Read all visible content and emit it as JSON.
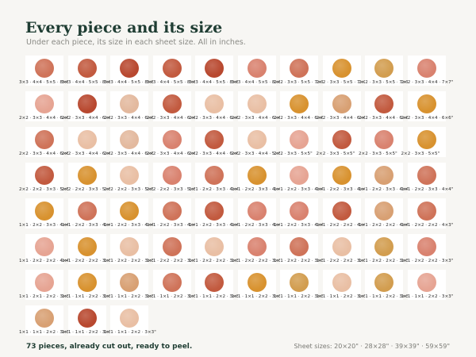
{
  "header": {
    "title": "Every piece and its size",
    "subtitle": "Under each piece, its size in each sheet size. All in inches."
  },
  "colors": {
    "rose": "#d9826f",
    "coral": "#cf7359",
    "rust": "#c25a3f",
    "terracotta": "#b8482f",
    "blush": "#e6a493",
    "peach": "#e9bfa4",
    "sand": "#e3b99e",
    "mustard": "#d8922f",
    "ochre": "#d29d4f",
    "tan": "#d8a073"
  },
  "pieces": [
    {
      "caption": "3×3 · 4×4 · 5×5 · 8×8\"",
      "color": "coral"
    },
    {
      "caption": "3×3 · 4×4 · 5×5 · 8×8\"",
      "color": "rust"
    },
    {
      "caption": "3×3 · 4×4 · 5×5 · 8×8\"",
      "color": "terracotta"
    },
    {
      "caption": "3×3 · 4×4 · 5×5 · 8×8\"",
      "color": "rust"
    },
    {
      "caption": "3×3 · 4×4 · 5×5 · 8×8\"",
      "color": "terracotta"
    },
    {
      "caption": "3×3 · 4×4 · 5×5 · 8×8\"",
      "color": "rose"
    },
    {
      "caption": "2×2 · 3×3 · 5×5 · 7×7\"",
      "color": "coral"
    },
    {
      "caption": "2×2 · 3×3 · 5×5 · 7×7\"",
      "color": "mustard"
    },
    {
      "caption": "2×2 · 3×3 · 5×5 · 7×7\"",
      "color": "ochre"
    },
    {
      "caption": "2×2 · 3×3 · 4×4 · 7×7\"",
      "color": "rose"
    },
    {
      "caption": "2×2 · 3×3 · 4×4 · 6×6\"",
      "color": "blush"
    },
    {
      "caption": "2×2 · 3×3 · 4×4 · 6×6\"",
      "color": "terracotta"
    },
    {
      "caption": "2×2 · 3×3 · 4×4 · 6×6\"",
      "color": "sand"
    },
    {
      "caption": "2×2 · 3×3 · 4×4 · 6×6\"",
      "color": "rust"
    },
    {
      "caption": "2×2 · 3×3 · 4×4 · 6×6\"",
      "color": "peach"
    },
    {
      "caption": "2×2 · 3×3 · 4×4 · 6×6\"",
      "color": "peach"
    },
    {
      "caption": "2×2 · 3×3 · 4×4 · 6×6\"",
      "color": "mustard"
    },
    {
      "caption": "2×2 · 3×3 · 4×4 · 6×6\"",
      "color": "tan"
    },
    {
      "caption": "2×2 · 3×3 · 4×4 · 6×6\"",
      "color": "rust"
    },
    {
      "caption": "2×2 · 3×3 · 4×4 · 6×6\"",
      "color": "mustard"
    },
    {
      "caption": "2×2 · 3×3 · 4×4 · 6×6\"",
      "color": "coral"
    },
    {
      "caption": "2×2 · 3×3 · 4×4 · 6×6\"",
      "color": "peach"
    },
    {
      "caption": "2×2 · 3×3 · 4×4 · 6×6\"",
      "color": "sand"
    },
    {
      "caption": "2×2 · 3×3 · 4×4 · 6×6\"",
      "color": "rose"
    },
    {
      "caption": "2×2 · 3×3 · 4×4 · 6×6\"",
      "color": "rust"
    },
    {
      "caption": "2×2 · 3×3 · 4×4 · 5×5\"",
      "color": "peach"
    },
    {
      "caption": "2×2 · 3×3 · 5×5\"",
      "color": "blush"
    },
    {
      "caption": "2×2 · 3×3 · 5×5\"",
      "color": "rust"
    },
    {
      "caption": "2×2 · 3×3 · 5×5\"",
      "color": "rose"
    },
    {
      "caption": "2×2 · 3×3 · 5×5\"",
      "color": "mustard"
    },
    {
      "caption": "2×2 · 2×2 · 3×3 · 5×5\"",
      "color": "rust"
    },
    {
      "caption": "2×2 · 2×2 · 3×3 · 5×5\"",
      "color": "mustard"
    },
    {
      "caption": "2×2 · 2×2 · 3×3 · 5×5\"",
      "color": "peach"
    },
    {
      "caption": "2×2 · 2×2 · 3×3 · 5×5\"",
      "color": "rose"
    },
    {
      "caption": "1×1 · 2×2 · 3×3 · 4×4\"",
      "color": "coral"
    },
    {
      "caption": "1×1 · 2×2 · 3×3 · 4×4\"",
      "color": "mustard"
    },
    {
      "caption": "1×1 · 2×2 · 3×3 · 4×4\"",
      "color": "blush"
    },
    {
      "caption": "1×1 · 2×2 · 3×3 · 4×4\"",
      "color": "mustard"
    },
    {
      "caption": "1×1 · 2×2 · 3×3 · 4×4\"",
      "color": "tan"
    },
    {
      "caption": "1×1 · 2×2 · 3×3 · 4×4\"",
      "color": "coral"
    },
    {
      "caption": "1×1 · 2×2 · 3×3 · 4×4\"",
      "color": "mustard"
    },
    {
      "caption": "1×1 · 2×2 · 3×3 · 4×4\"",
      "color": "coral"
    },
    {
      "caption": "1×1 · 2×2 · 3×3 · 4×4\"",
      "color": "mustard"
    },
    {
      "caption": "1×1 · 2×2 · 3×3 · 4×4\"",
      "color": "coral"
    },
    {
      "caption": "1×1 · 2×2 · 3×3 · 4×4\"",
      "color": "rust"
    },
    {
      "caption": "1×1 · 2×2 · 3×3 · 4×4\"",
      "color": "rose"
    },
    {
      "caption": "1×1 · 2×2 · 3×3 · 4×4\"",
      "color": "rose"
    },
    {
      "caption": "1×1 · 2×2 · 2×2 · 4×4\"",
      "color": "rust"
    },
    {
      "caption": "1×1 · 2×2 · 2×2 · 4×4\"",
      "color": "tan"
    },
    {
      "caption": "1×1 · 2×2 · 2×2 · 4×3\"",
      "color": "coral"
    },
    {
      "caption": "1×1 · 2×2 · 2×2 · 4×4\"",
      "color": "blush"
    },
    {
      "caption": "1×1 · 2×2 · 2×2 · 3×3\"",
      "color": "mustard"
    },
    {
      "caption": "1×1 · 2×2 · 2×2 · 3×3\"",
      "color": "peach"
    },
    {
      "caption": "1×1 · 2×2 · 2×2 · 3×3\"",
      "color": "coral"
    },
    {
      "caption": "1×1 · 2×2 · 2×2 · 3×3\"",
      "color": "peach"
    },
    {
      "caption": "1×1 · 2×2 · 2×2 · 3×3\"",
      "color": "rose"
    },
    {
      "caption": "1×1 · 2×2 · 2×2 · 3×3\"",
      "color": "coral"
    },
    {
      "caption": "1×1 · 2×2 · 2×2 · 3×3\"",
      "color": "peach"
    },
    {
      "caption": "1×1 · 2×2 · 2×2 · 3×3\"",
      "color": "ochre"
    },
    {
      "caption": "1×1 · 2×2 · 2×2 · 3×3\"",
      "color": "rose"
    },
    {
      "caption": "1×1 · 2×1 · 2×2 · 3×3\"",
      "color": "blush"
    },
    {
      "caption": "1×1 · 1×1 · 2×2 · 3×3\"",
      "color": "mustard"
    },
    {
      "caption": "1×1 · 1×1 · 2×2 · 3×3\"",
      "color": "tan"
    },
    {
      "caption": "1×1 · 1×1 · 2×2 · 3×3\"",
      "color": "coral"
    },
    {
      "caption": "1×1 · 1×1 · 2×2 · 3×3\"",
      "color": "rust"
    },
    {
      "caption": "1×1 · 1×1 · 2×2 · 3×3\"",
      "color": "mustard"
    },
    {
      "caption": "1×1 · 1×1 · 2×2 · 3×3\"",
      "color": "ochre"
    },
    {
      "caption": "1×1 · 1×1 · 2×2 · 3×3\"",
      "color": "peach"
    },
    {
      "caption": "1×1 · 1×1 · 2×2 · 3×3\"",
      "color": "ochre"
    },
    {
      "caption": "1×1 · 1×1 · 2×2 · 3×3\"",
      "color": "blush"
    },
    {
      "caption": "1×1 · 1×1 · 2×2 · 3×3\"",
      "color": "tan"
    },
    {
      "caption": "1×1 · 1×1 · 2×2 · 3×3\"",
      "color": "terracotta"
    },
    {
      "caption": "1×1 · 1×1 · 2×2 · 3×3\"",
      "color": "peach"
    }
  ],
  "footer": {
    "summary": "73 pieces, already cut out, ready to peel.",
    "sheet_sizes": "Sheet sizes: 20×20\" · 28×28\" · 39×39\" · 59×59\""
  }
}
